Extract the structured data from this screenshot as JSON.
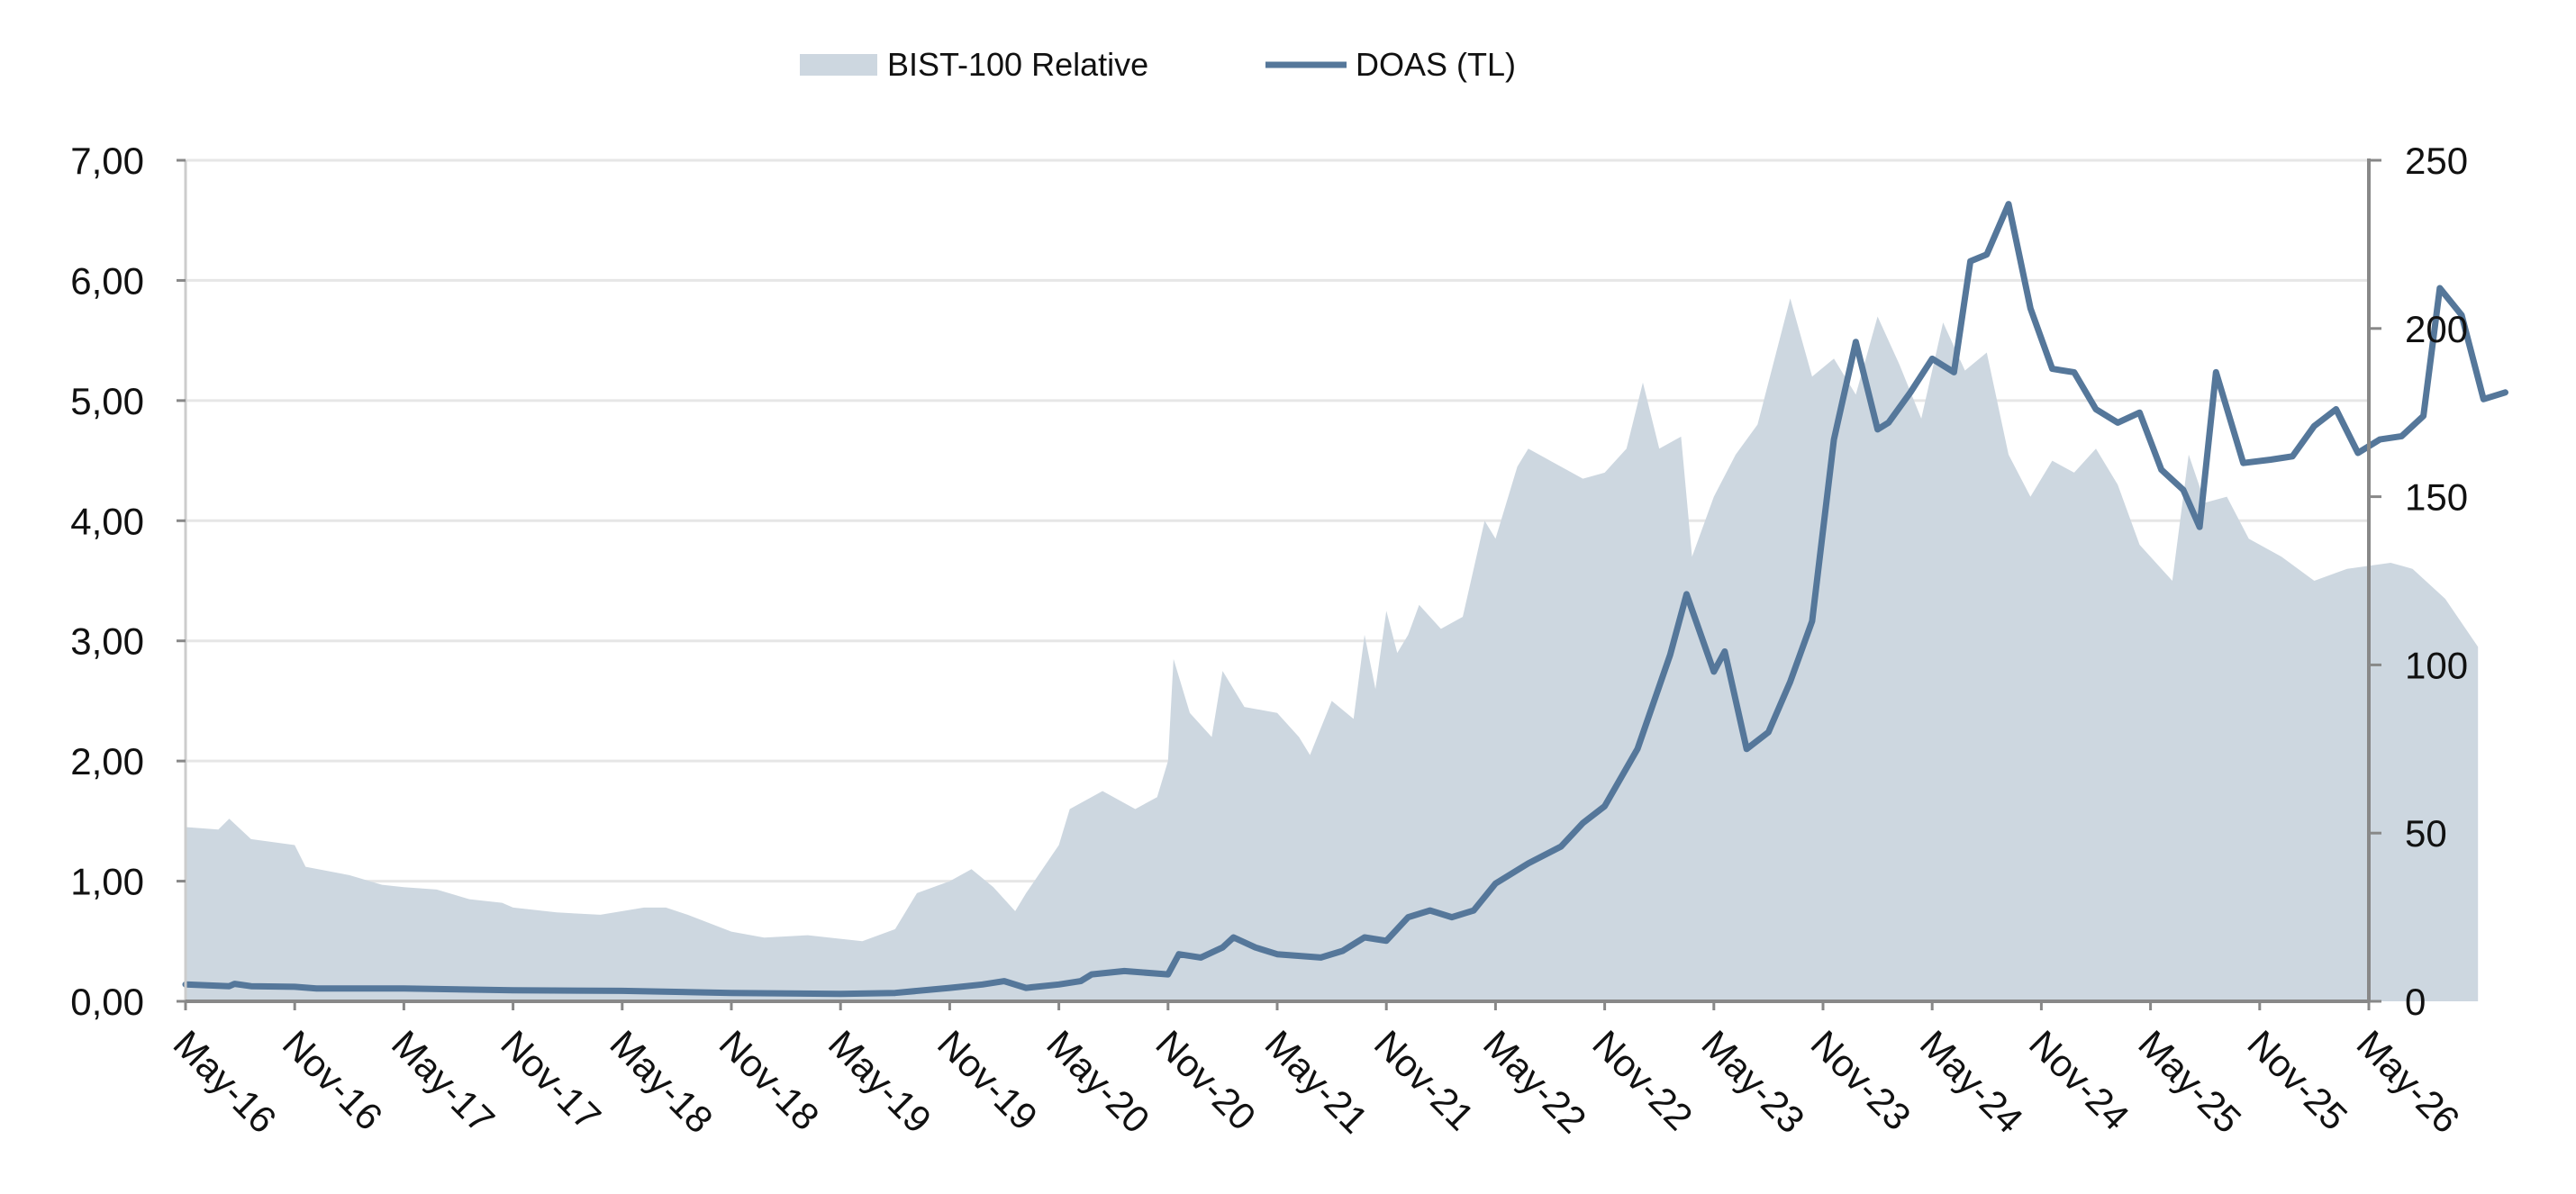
{
  "chart_data": {
    "type": "line",
    "title": "",
    "legend": {
      "placement": "top",
      "entries": [
        {
          "label": "BIST-100 Relative",
          "kind": "area"
        },
        {
          "label": "DOAS (TL)",
          "kind": "line"
        }
      ]
    },
    "x": [
      "May-16",
      "Nov-16",
      "May-17",
      "Nov-17",
      "May-18",
      "Nov-18",
      "May-19",
      "Nov-19",
      "May-20",
      "Nov-20",
      "May-21",
      "Nov-21",
      "May-22",
      "Nov-22",
      "May-23",
      "Nov-23",
      "May-24",
      "Nov-24",
      "May-25",
      "Nov-25",
      "May-26"
    ],
    "y_left": {
      "label": "",
      "ylim": [
        0,
        7
      ],
      "ticks": [
        "0,00",
        "1,00",
        "2,00",
        "3,00",
        "4,00",
        "5,00",
        "6,00",
        "7,00"
      ]
    },
    "y_right": {
      "label": "",
      "ylim": [
        0,
        250
      ],
      "ticks": [
        "0",
        "50",
        "100",
        "150",
        "200",
        "250"
      ]
    },
    "grid": true,
    "series": [
      {
        "name": "BIST-100 Relative",
        "kind": "area",
        "axis": "left",
        "color": "#cdd7e0",
        "points": [
          [
            0,
            1.45
          ],
          [
            0.3,
            1.43
          ],
          [
            0.4,
            1.52
          ],
          [
            0.6,
            1.35
          ],
          [
            1.0,
            1.3
          ],
          [
            1.1,
            1.12
          ],
          [
            1.5,
            1.05
          ],
          [
            1.8,
            0.97
          ],
          [
            2.0,
            0.95
          ],
          [
            2.3,
            0.93
          ],
          [
            2.6,
            0.85
          ],
          [
            2.9,
            0.82
          ],
          [
            3.0,
            0.78
          ],
          [
            3.4,
            0.74
          ],
          [
            3.8,
            0.72
          ],
          [
            4.0,
            0.75
          ],
          [
            4.2,
            0.78
          ],
          [
            4.4,
            0.78
          ],
          [
            4.6,
            0.72
          ],
          [
            5.0,
            0.58
          ],
          [
            5.3,
            0.53
          ],
          [
            5.7,
            0.55
          ],
          [
            6.0,
            0.52
          ],
          [
            6.2,
            0.5
          ],
          [
            6.5,
            0.6
          ],
          [
            6.7,
            0.9
          ],
          [
            7.0,
            1.0
          ],
          [
            7.2,
            1.1
          ],
          [
            7.4,
            0.95
          ],
          [
            7.6,
            0.75
          ],
          [
            7.7,
            0.9
          ],
          [
            8.0,
            1.3
          ],
          [
            8.1,
            1.6
          ],
          [
            8.4,
            1.75
          ],
          [
            8.7,
            1.6
          ],
          [
            8.9,
            1.7
          ],
          [
            9.0,
            2.0
          ],
          [
            9.05,
            2.85
          ],
          [
            9.2,
            2.4
          ],
          [
            9.4,
            2.2
          ],
          [
            9.5,
            2.75
          ],
          [
            9.7,
            2.45
          ],
          [
            10.0,
            2.4
          ],
          [
            10.2,
            2.2
          ],
          [
            10.3,
            2.05
          ],
          [
            10.5,
            2.5
          ],
          [
            10.7,
            2.35
          ],
          [
            10.8,
            3.05
          ],
          [
            10.9,
            2.6
          ],
          [
            11.0,
            3.25
          ],
          [
            11.1,
            2.9
          ],
          [
            11.2,
            3.05
          ],
          [
            11.3,
            3.3
          ],
          [
            11.5,
            3.1
          ],
          [
            11.7,
            3.2
          ],
          [
            11.9,
            4.0
          ],
          [
            12.0,
            3.85
          ],
          [
            12.2,
            4.45
          ],
          [
            12.3,
            4.6
          ],
          [
            12.5,
            4.5
          ],
          [
            12.8,
            4.35
          ],
          [
            13.0,
            4.4
          ],
          [
            13.2,
            4.6
          ],
          [
            13.35,
            5.15
          ],
          [
            13.5,
            4.6
          ],
          [
            13.7,
            4.7
          ],
          [
            13.8,
            3.7
          ],
          [
            14.0,
            4.2
          ],
          [
            14.2,
            4.55
          ],
          [
            14.4,
            4.8
          ],
          [
            14.6,
            5.5
          ],
          [
            14.7,
            5.85
          ],
          [
            14.9,
            5.2
          ],
          [
            15.1,
            5.35
          ],
          [
            15.3,
            5.05
          ],
          [
            15.5,
            5.7
          ],
          [
            15.7,
            5.3
          ],
          [
            15.9,
            4.85
          ],
          [
            16.1,
            5.65
          ],
          [
            16.3,
            5.25
          ],
          [
            16.5,
            5.4
          ],
          [
            16.7,
            4.55
          ],
          [
            16.9,
            4.2
          ],
          [
            17.1,
            4.5
          ],
          [
            17.3,
            4.4
          ],
          [
            17.5,
            4.6
          ],
          [
            17.7,
            4.3
          ],
          [
            17.9,
            3.8
          ],
          [
            18.2,
            3.5
          ],
          [
            18.35,
            4.55
          ],
          [
            18.5,
            4.15
          ],
          [
            18.7,
            4.2
          ],
          [
            18.9,
            3.85
          ],
          [
            19.2,
            3.7
          ],
          [
            19.5,
            3.5
          ],
          [
            19.8,
            3.6
          ],
          [
            20.2,
            3.65
          ],
          [
            20.4,
            3.6
          ],
          [
            20.7,
            3.35
          ],
          [
            21.0,
            2.95
          ]
        ]
      },
      {
        "name": "DOAS (TL)",
        "kind": "line",
        "axis": "right",
        "color": "#55779a",
        "points": [
          [
            0,
            5
          ],
          [
            0.4,
            4.5
          ],
          [
            0.45,
            5.2
          ],
          [
            0.6,
            4.5
          ],
          [
            1.0,
            4.3
          ],
          [
            1.2,
            3.8
          ],
          [
            2.0,
            3.8
          ],
          [
            3.0,
            3.3
          ],
          [
            4.0,
            3.1
          ],
          [
            5.0,
            2.5
          ],
          [
            6.0,
            2.2
          ],
          [
            6.5,
            2.5
          ],
          [
            7.0,
            4.0
          ],
          [
            7.3,
            5.0
          ],
          [
            7.5,
            6.0
          ],
          [
            7.7,
            4.0
          ],
          [
            8.0,
            5.0
          ],
          [
            8.2,
            6.0
          ],
          [
            8.3,
            8.0
          ],
          [
            8.6,
            9.0
          ],
          [
            9.0,
            8.0
          ],
          [
            9.1,
            14.0
          ],
          [
            9.3,
            13.0
          ],
          [
            9.5,
            16.0
          ],
          [
            9.6,
            19.0
          ],
          [
            9.8,
            16.0
          ],
          [
            10.0,
            14.0
          ],
          [
            10.4,
            13.0
          ],
          [
            10.6,
            15.0
          ],
          [
            10.8,
            19.0
          ],
          [
            11.0,
            18.0
          ],
          [
            11.2,
            25.0
          ],
          [
            11.4,
            27.0
          ],
          [
            11.6,
            25.0
          ],
          [
            11.8,
            27.0
          ],
          [
            12.0,
            35.0
          ],
          [
            12.3,
            41.0
          ],
          [
            12.6,
            46.0
          ],
          [
            12.8,
            53.0
          ],
          [
            13.0,
            58.0
          ],
          [
            13.3,
            75.0
          ],
          [
            13.6,
            103.0
          ],
          [
            13.75,
            121.0
          ],
          [
            14.0,
            98.0
          ],
          [
            14.1,
            104.0
          ],
          [
            14.3,
            75.0
          ],
          [
            14.5,
            80.0
          ],
          [
            14.7,
            95.0
          ],
          [
            14.9,
            113.0
          ],
          [
            15.1,
            167.0
          ],
          [
            15.3,
            196.0
          ],
          [
            15.5,
            170.0
          ],
          [
            15.6,
            172.0
          ],
          [
            15.8,
            181.0
          ],
          [
            16.0,
            191.0
          ],
          [
            16.2,
            187.0
          ],
          [
            16.35,
            220.0
          ],
          [
            16.5,
            222.0
          ],
          [
            16.7,
            237.0
          ],
          [
            16.9,
            206.0
          ],
          [
            17.1,
            188.0
          ],
          [
            17.3,
            187.0
          ],
          [
            17.5,
            176.0
          ],
          [
            17.7,
            172.0
          ],
          [
            17.9,
            175.0
          ],
          [
            18.1,
            158.0
          ],
          [
            18.3,
            152.0
          ],
          [
            18.45,
            141.0
          ],
          [
            18.6,
            187.0
          ],
          [
            18.85,
            160.0
          ],
          [
            19.1,
            161.0
          ],
          [
            19.3,
            162.0
          ],
          [
            19.5,
            171.0
          ],
          [
            19.7,
            176.0
          ],
          [
            19.9,
            163.0
          ],
          [
            20.1,
            167.0
          ],
          [
            20.3,
            168.0
          ],
          [
            20.5,
            174.0
          ],
          [
            20.65,
            212.0
          ],
          [
            20.85,
            204.0
          ],
          [
            21.05,
            179.0
          ],
          [
            21.25,
            181.0
          ]
        ]
      }
    ]
  }
}
